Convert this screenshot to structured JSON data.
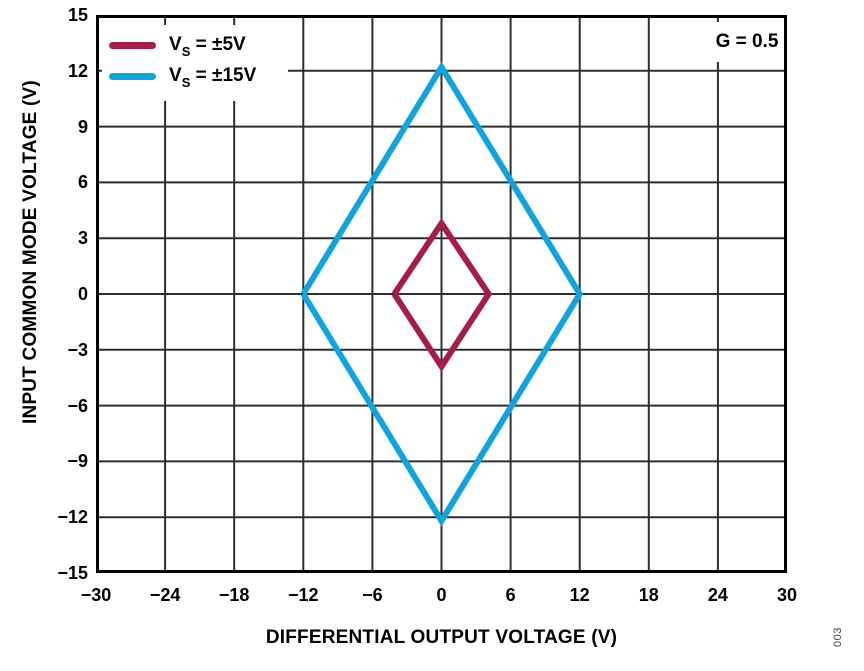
{
  "figure_number": "003",
  "chart_data": {
    "type": "line",
    "title": "",
    "xlabel": "DIFFERENTIAL OUTPUT VOLTAGE (V)",
    "ylabel": "INPUT COMMON MODE VOLTAGE (V)",
    "xlim": [
      -30,
      30
    ],
    "ylim": [
      -15,
      15
    ],
    "grid": true,
    "grid_color": "#2e2e2e",
    "frame_color": "#000000",
    "background_color": "#ffffff",
    "x_ticks": {
      "values": [
        -30,
        -24,
        -18,
        -12,
        -6,
        0,
        6,
        12,
        18,
        24,
        30
      ],
      "labels": [
        "−30",
        "−24",
        "−18",
        "−12",
        "−6",
        "0",
        "6",
        "12",
        "18",
        "24",
        "30"
      ]
    },
    "y_ticks": {
      "values": [
        15,
        12,
        9,
        6,
        3,
        0,
        -3,
        -6,
        -9,
        -12,
        -15
      ],
      "labels": [
        "15",
        "12",
        "9",
        "6",
        "3",
        "0",
        "−3",
        "−6",
        "−9",
        "−12",
        "−15"
      ]
    },
    "legend_position": "top-left",
    "legend": [
      {
        "pre": "V",
        "sub": "S",
        "rest": " = ±5V"
      },
      {
        "pre": "V",
        "sub": "S",
        "rest": " = ±15V"
      }
    ],
    "annotation": "G = 0.5",
    "series": [
      {
        "name": "VS = ±5V",
        "color": "#A31E4C",
        "stroke_width": 6,
        "points": [
          [
            -4.1,
            0
          ],
          [
            0,
            3.8
          ],
          [
            4.1,
            0
          ],
          [
            0,
            -3.9
          ],
          [
            -4.1,
            0
          ]
        ]
      },
      {
        "name": "VS = ±15V",
        "color": "#12A3DC",
        "stroke_width": 6,
        "points": [
          [
            -12,
            0
          ],
          [
            0,
            12.2
          ],
          [
            12,
            0
          ],
          [
            0,
            -12.2
          ],
          [
            -12,
            0
          ]
        ]
      }
    ]
  }
}
